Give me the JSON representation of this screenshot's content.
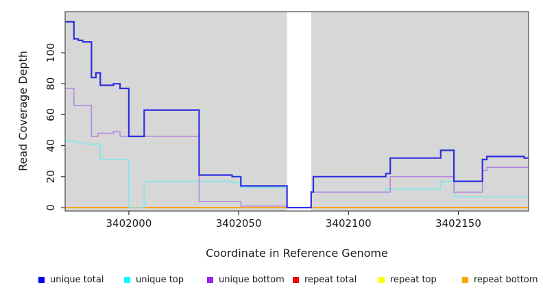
{
  "chart_data": {
    "type": "line",
    "line_style": "step",
    "title": "",
    "xlabel": "Coordinate in Reference Genome",
    "ylabel": "Read Coverage Depth",
    "xlim": [
      3401971,
      3402182
    ],
    "ylim": [
      0,
      126
    ],
    "x_ticks": [
      3402000,
      3402050,
      3402100,
      3402150
    ],
    "y_ticks": [
      0,
      20,
      40,
      60,
      80,
      100
    ],
    "grid": "off",
    "panel_background": "#D7D7D7",
    "missing_region": {
      "x_start": 3402072,
      "x_end": 3402083,
      "color": "#FFFFFF"
    },
    "legend_position": "bottom",
    "series": [
      {
        "name": "unique total",
        "line_color": "#2D2DE0",
        "line_width": 2.2,
        "points": [
          [
            3401971,
            120
          ],
          [
            3401975,
            109
          ],
          [
            3401977,
            108
          ],
          [
            3401979,
            107
          ],
          [
            3401983,
            84
          ],
          [
            3401985,
            87
          ],
          [
            3401987,
            79
          ],
          [
            3401993,
            80
          ],
          [
            3401996,
            77
          ],
          [
            3402000,
            46
          ],
          [
            3402007,
            63
          ],
          [
            3402032,
            21
          ],
          [
            3402047,
            20
          ],
          [
            3402051,
            14
          ],
          [
            3402072,
            0
          ],
          [
            3402083,
            10
          ],
          [
            3402084,
            20
          ],
          [
            3402117,
            22
          ],
          [
            3402119,
            32
          ],
          [
            3402142,
            37
          ],
          [
            3402148,
            17
          ],
          [
            3402161,
            31
          ],
          [
            3402163,
            33
          ],
          [
            3402180,
            32
          ]
        ]
      },
      {
        "name": "unique top",
        "line_color": "#82E6E9",
        "line_width": 1.6,
        "points": [
          [
            3401971,
            43
          ],
          [
            3401976,
            42
          ],
          [
            3401980,
            41
          ],
          [
            3401987,
            31
          ],
          [
            3402000,
            0
          ],
          [
            3402007,
            17
          ],
          [
            3402047,
            16
          ],
          [
            3402051,
            13
          ],
          [
            3402072,
            0
          ],
          [
            3402083,
            10
          ],
          [
            3402117,
            12
          ],
          [
            3402142,
            17
          ],
          [
            3402148,
            7
          ]
        ]
      },
      {
        "name": "unique bottom",
        "line_color": "#B488DC",
        "line_width": 1.6,
        "points": [
          [
            3401971,
            77
          ],
          [
            3401975,
            66
          ],
          [
            3401983,
            46
          ],
          [
            3401986,
            48
          ],
          [
            3401993,
            49
          ],
          [
            3401996,
            46
          ],
          [
            3402032,
            4
          ],
          [
            3402051,
            1
          ],
          [
            3402072,
            0
          ],
          [
            3402083,
            10
          ],
          [
            3402119,
            20
          ],
          [
            3402148,
            10
          ],
          [
            3402161,
            24
          ],
          [
            3402163,
            26
          ]
        ]
      },
      {
        "name": "repeat total",
        "line_color": "#E02020",
        "line_width": 1.4,
        "points": [
          [
            3401971,
            0
          ]
        ]
      },
      {
        "name": "repeat top",
        "line_color": "#FFFF00",
        "line_width": 1.4,
        "points": [
          [
            3401971,
            0
          ]
        ]
      },
      {
        "name": "repeat bottom",
        "line_color": "#FFA217",
        "line_width": 2,
        "points": [
          [
            3401971,
            0
          ]
        ]
      }
    ]
  },
  "legend": {
    "items": [
      {
        "label": "unique total",
        "color": "#0000EE"
      },
      {
        "label": "unique top",
        "color": "#00FFFF"
      },
      {
        "label": "unique bottom",
        "color": "#A020F0"
      },
      {
        "label": "repeat total",
        "color": "#EE0000"
      },
      {
        "label": "repeat top",
        "color": "#FFFF00"
      },
      {
        "label": "repeat bottom",
        "color": "#FFA500"
      }
    ]
  }
}
